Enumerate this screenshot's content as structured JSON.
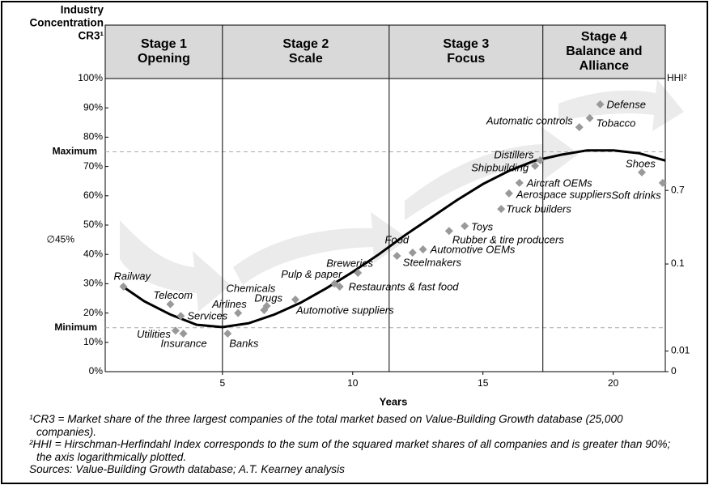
{
  "chart_data": {
    "type": "scatter",
    "ylabel_lines": [
      "Industry",
      "Concentration",
      "CR3¹"
    ],
    "y2label": "HHI²",
    "xlabel": "Years",
    "xlim": [
      0.5,
      22
    ],
    "xticks": [
      5,
      10,
      15,
      20
    ],
    "ylim": [
      0,
      100
    ],
    "yticks": [
      {
        "value": 0,
        "label": "0%"
      },
      {
        "value": 10,
        "label": "10%"
      },
      {
        "value": 20,
        "label": "20%"
      },
      {
        "value": 30,
        "label": "30%"
      },
      {
        "value": 40,
        "label": "40%"
      },
      {
        "value": 50,
        "label": "50%"
      },
      {
        "value": 60,
        "label": "60%"
      },
      {
        "value": 70,
        "label": "70%"
      },
      {
        "value": 80,
        "label": "80%"
      },
      {
        "value": 90,
        "label": "90%"
      },
      {
        "value": 100,
        "label": "100%"
      }
    ],
    "y2_log": true,
    "y2lim": [
      0.0058,
      13.5
    ],
    "y2ticks": [
      0.01,
      0.1,
      0.7
    ],
    "y2_origin_label": "0",
    "reference_lines": [
      {
        "value": 75,
        "label": "Maximum",
        "dashed": true
      },
      {
        "value": 45,
        "label": "∅45%",
        "dashed": false
      },
      {
        "value": 15,
        "label": "Minimum",
        "dashed": true
      }
    ],
    "stages": [
      {
        "name": "Stage 1",
        "title": [
          "Opening"
        ]
      },
      {
        "name": "Stage 2",
        "title": [
          "Scale"
        ]
      },
      {
        "name": "Stage 3",
        "title": [
          "Focus"
        ]
      },
      {
        "name": "Stage 4",
        "title": [
          "Balance and",
          "Alliance"
        ]
      }
    ],
    "stage_bounds": [
      5,
      11.4,
      17.3
    ],
    "color": "#999999",
    "labels": [
      "Railway",
      "Telecom",
      "Services",
      "Utilities",
      "Insurance",
      "Banks",
      "Airlines",
      "Chemicals",
      "Drugs",
      "Automotive suppliers",
      "Pulp & paper",
      "Restaurants & fast food",
      "Breweries",
      "Food",
      "Steelmakers",
      "Automotive OEMs",
      "Rubber & tire producers",
      "Toys",
      "Truck builders",
      "Aerospace suppliers",
      "Aircraft OEMs",
      "Shipbuilding",
      "Distillers",
      "Automatic controls",
      "Tobacco",
      "Defense",
      "Shoes",
      "Soft drinks"
    ],
    "x": [
      1.2,
      3.0,
      3.4,
      3.2,
      3.5,
      5.2,
      5.6,
      6.7,
      6.6,
      7.8,
      9.3,
      9.5,
      10.2,
      11.7,
      12.3,
      12.7,
      13.7,
      14.3,
      15.7,
      16.0,
      16.4,
      17.0,
      17.2,
      18.7,
      19.1,
      19.5,
      21.1,
      21.9
    ],
    "values": [
      29,
      23,
      19,
      14,
      13,
      13,
      20,
      22.4,
      21,
      24.6,
      30,
      29,
      33.7,
      39.5,
      40.6,
      41.7,
      48,
      49.7,
      55.5,
      60.8,
      64.4,
      70.2,
      72.1,
      83.4,
      86.5,
      91.2,
      68,
      64.4
    ],
    "curve": {
      "color": "#000000",
      "x": [
        1.1,
        2,
        3,
        4,
        5,
        6,
        7,
        8,
        9,
        10,
        11,
        12,
        13,
        14,
        15,
        16,
        17,
        18,
        19,
        20,
        21,
        22
      ],
      "values": [
        29.5,
        24,
        19.5,
        16,
        15.2,
        16.5,
        19.5,
        23.5,
        28.5,
        34,
        40,
        46.5,
        52.5,
        58.5,
        64,
        68.5,
        72,
        74,
        75.5,
        75.5,
        74.5,
        72
      ]
    }
  },
  "footnotes": [
    "¹CR3 = Market share of the three largest companies of the total market based on Value-Building Growth database (25,000 companies).",
    "²HHI = Hirschman-Herfindahl Index corresponds to the sum of the squared market shares of all companies and is greater than 90%; the axis logarithmically plotted.",
    "Sources: Value-Building Growth database; A.T. Kearney analysis"
  ]
}
